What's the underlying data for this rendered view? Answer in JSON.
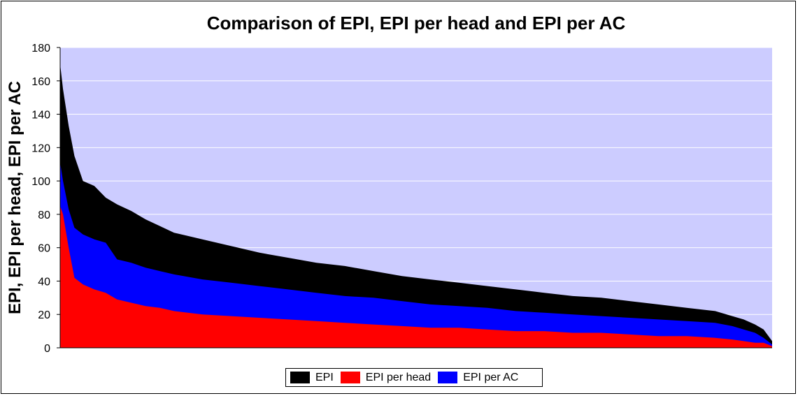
{
  "chart_data": {
    "type": "area",
    "title": "Comparison of EPI, EPI per head and EPI per AC",
    "xlabel": "",
    "ylabel": "EPI, EPI per head, EPI per AC",
    "ylim": [
      0,
      180
    ],
    "yticks": [
      "0",
      "20",
      "40",
      "60",
      "80",
      "100",
      "120",
      "140",
      "160",
      "180"
    ],
    "grid": true,
    "legend_position": "bottom",
    "plot_background": "#CCCCFF",
    "x": [
      0,
      1,
      3,
      5,
      8,
      12,
      16,
      20,
      25,
      30,
      35,
      40,
      50,
      60,
      70,
      80,
      90,
      100,
      110,
      120,
      130,
      140,
      150,
      160,
      170,
      180,
      190,
      200,
      210,
      220,
      230,
      236,
      240,
      244,
      247,
      250
    ],
    "series": [
      {
        "name": "EPI",
        "color": "#000000",
        "values": [
          170,
          155,
          133,
          115,
          100,
          97,
          90,
          86,
          82,
          77,
          73,
          69,
          65,
          61,
          57,
          54,
          51,
          49,
          46,
          43,
          41,
          39,
          37,
          35,
          33,
          31,
          30,
          28,
          26,
          24,
          22,
          19,
          17,
          14,
          11,
          4
        ]
      },
      {
        "name": "EPI per head",
        "color": "#FF0000",
        "values": [
          85,
          80,
          60,
          42,
          38,
          35,
          33,
          29,
          27,
          25,
          24,
          22,
          20,
          19,
          18,
          17,
          16,
          15,
          14,
          13,
          12,
          12,
          11,
          10,
          10,
          9,
          9,
          8,
          7,
          7,
          6,
          5,
          4,
          3,
          3,
          1
        ]
      },
      {
        "name": "EPI per AC",
        "color": "#0000FF",
        "values": [
          111,
          100,
          83,
          72,
          68,
          65,
          63,
          53,
          51,
          48,
          46,
          44,
          41,
          39,
          37,
          35,
          33,
          31,
          30,
          28,
          26,
          25,
          24,
          22,
          21,
          20,
          19,
          18,
          17,
          16,
          15,
          13,
          11,
          9,
          6,
          2
        ]
      }
    ]
  }
}
